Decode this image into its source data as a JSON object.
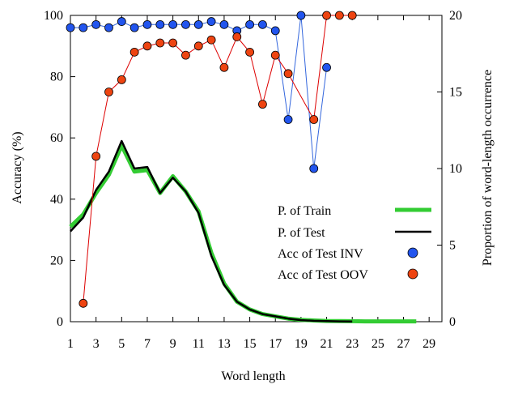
{
  "chart_data": {
    "type": "line",
    "xlabel": "Word length",
    "ylabel_left": "Accuracy (%)",
    "ylabel_right": "Proportion of word-length occurrence",
    "xlim": [
      1,
      30
    ],
    "ylim_left": [
      0,
      100
    ],
    "ylim_right": [
      0,
      20
    ],
    "x_ticks": [
      "1",
      "3",
      "5",
      "7",
      "9",
      "11",
      "13",
      "15",
      "17",
      "19",
      "21",
      "23",
      "25",
      "27",
      "29"
    ],
    "x_tick_values": [
      1,
      3,
      5,
      7,
      9,
      11,
      13,
      15,
      17,
      19,
      21,
      23,
      25,
      27,
      29
    ],
    "y_left_ticks": [
      "0",
      "20",
      "40",
      "60",
      "80",
      "100"
    ],
    "y_left_tick_values": [
      0,
      20,
      40,
      60,
      80,
      100
    ],
    "y_right_ticks": [
      "0",
      "5",
      "10",
      "15",
      "20"
    ],
    "y_right_tick_values": [
      0,
      5,
      10,
      15,
      20
    ],
    "grid": false,
    "legend_position": "right",
    "colors": {
      "train": "#33cc33",
      "test": "#000000",
      "inv_fill": "#2255ee",
      "inv_line": "#3366dd",
      "oov_fill": "#ee4411",
      "oov_line": "#dd0000"
    },
    "series": [
      {
        "name": "P. of Train",
        "axis": "right",
        "style": "thick-line",
        "x": [
          1,
          2,
          3,
          4,
          5,
          6,
          7,
          8,
          9,
          10,
          11,
          12,
          13,
          14,
          15,
          16,
          17,
          18,
          19,
          20,
          21,
          22,
          23,
          24,
          25,
          26,
          27,
          28
        ],
        "y": [
          6.2,
          7.0,
          8.4,
          9.6,
          11.5,
          9.8,
          9.9,
          8.4,
          9.5,
          8.5,
          7.2,
          4.5,
          2.5,
          1.3,
          0.8,
          0.5,
          0.35,
          0.2,
          0.12,
          0.08,
          0.05,
          0.04,
          0.03,
          0.02,
          0.02,
          0.02,
          0.02,
          0.02
        ]
      },
      {
        "name": "P. of Test",
        "axis": "right",
        "style": "line",
        "x": [
          1,
          2,
          3,
          4,
          5,
          6,
          7,
          8,
          9,
          10,
          11,
          12,
          13,
          14,
          15,
          16,
          17,
          18,
          19,
          20,
          21,
          22,
          23
        ],
        "y": [
          5.9,
          6.8,
          8.6,
          9.8,
          11.8,
          10.0,
          10.1,
          8.4,
          9.4,
          8.5,
          7.1,
          4.3,
          2.4,
          1.3,
          0.8,
          0.5,
          0.35,
          0.2,
          0.1,
          0.06,
          0.04,
          0.02,
          0.01
        ]
      },
      {
        "name": "Acc of Test INV",
        "axis": "left",
        "style": "marker-line",
        "x": [
          1,
          2,
          3,
          4,
          5,
          6,
          7,
          8,
          9,
          10,
          11,
          12,
          13,
          14,
          15,
          16,
          17,
          18,
          19,
          20,
          21
        ],
        "y": [
          96,
          96,
          97,
          96,
          98,
          96,
          97,
          97,
          97,
          97,
          97,
          98,
          97,
          95,
          97,
          97,
          95,
          66,
          100,
          50,
          83
        ]
      },
      {
        "name": "Acc of Test OOV",
        "axis": "left",
        "style": "marker-line",
        "x": [
          2,
          3,
          4,
          5,
          6,
          7,
          8,
          9,
          10,
          11,
          12,
          13,
          14,
          15,
          16,
          17,
          18,
          20,
          21,
          22,
          23
        ],
        "y": [
          6,
          54,
          75,
          79,
          88,
          90,
          91,
          91,
          87,
          90,
          92,
          83,
          93,
          88,
          71,
          87,
          81,
          66,
          100,
          100,
          100
        ]
      }
    ]
  }
}
